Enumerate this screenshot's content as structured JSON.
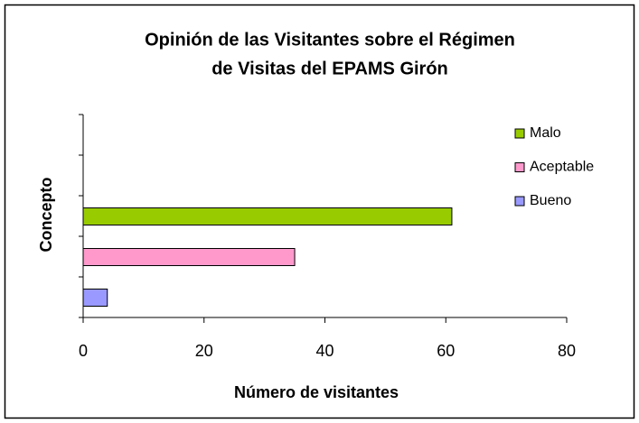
{
  "chart_data": {
    "type": "bar",
    "orientation": "horizontal",
    "title": [
      "Opinión de las Visitantes sobre el Régimen",
      "de Visitas del EPAMS Girón"
    ],
    "xlabel": "Número de visitantes",
    "ylabel": "Concepto",
    "series": [
      {
        "name": "Malo",
        "color": "#99cc00",
        "values": [
          61
        ]
      },
      {
        "name": "Aceptable",
        "color": "#ff99cc",
        "values": [
          35
        ]
      },
      {
        "name": "Bueno",
        "color": "#9999ff",
        "values": [
          4
        ]
      }
    ],
    "xlim": [
      0,
      80
    ],
    "xticks": [
      0,
      20,
      40,
      60,
      80
    ],
    "grid": false,
    "legend": "right"
  }
}
